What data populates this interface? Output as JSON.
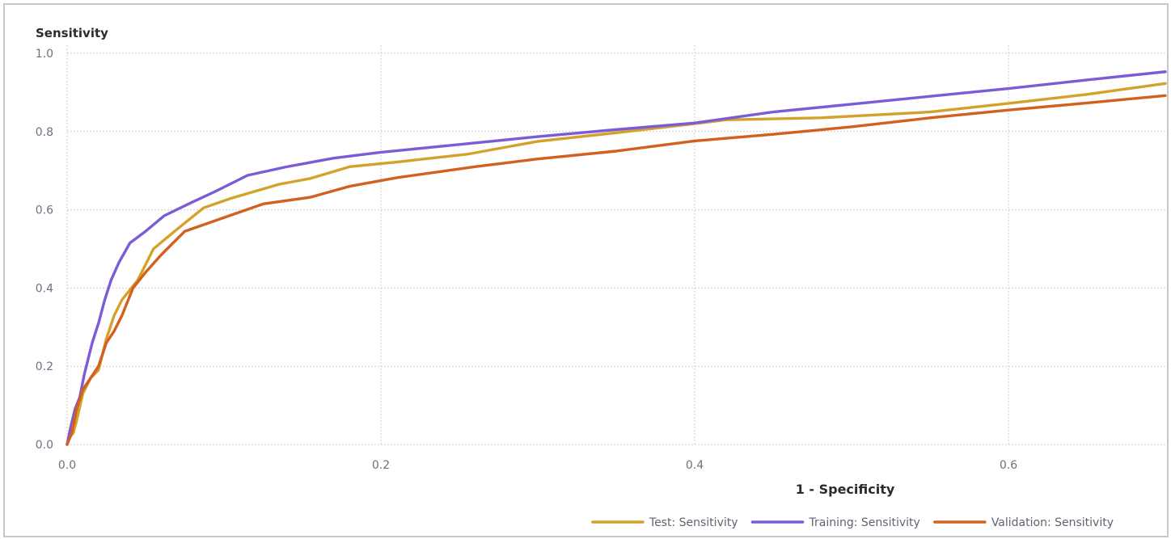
{
  "chart_data": {
    "type": "line",
    "ylabel": "Sensitivity",
    "xlabel": "1 - Specificity",
    "xlim": [
      0,
      0.7
    ],
    "ylim": [
      0,
      1.0
    ],
    "x_ticks": [
      0.0,
      0.2,
      0.4,
      0.6
    ],
    "x_tick_labels": [
      "0.0",
      "0.2",
      "0.4",
      "0.6"
    ],
    "y_ticks": [
      0.0,
      0.2,
      0.4,
      0.6,
      0.8,
      1.0
    ],
    "y_tick_labels": [
      "0.0",
      "0.2",
      "0.4",
      "0.6",
      "0.8",
      "1.0"
    ],
    "grid": true,
    "legend_position": "bottom-right",
    "series": [
      {
        "name": "Test: Sensitivity",
        "color": "#d4a22b",
        "points": [
          [
            0.0,
            0.0
          ],
          [
            0.002,
            0.02
          ],
          [
            0.004,
            0.03
          ],
          [
            0.006,
            0.06
          ],
          [
            0.01,
            0.13
          ],
          [
            0.015,
            0.17
          ],
          [
            0.02,
            0.19
          ],
          [
            0.025,
            0.27
          ],
          [
            0.03,
            0.33
          ],
          [
            0.035,
            0.37
          ],
          [
            0.045,
            0.42
          ],
          [
            0.055,
            0.5
          ],
          [
            0.07,
            0.55
          ],
          [
            0.087,
            0.605
          ],
          [
            0.105,
            0.63
          ],
          [
            0.135,
            0.665
          ],
          [
            0.155,
            0.68
          ],
          [
            0.18,
            0.71
          ],
          [
            0.21,
            0.722
          ],
          [
            0.255,
            0.742
          ],
          [
            0.3,
            0.775
          ],
          [
            0.35,
            0.797
          ],
          [
            0.4,
            0.82
          ],
          [
            0.42,
            0.83
          ],
          [
            0.48,
            0.835
          ],
          [
            0.55,
            0.85
          ],
          [
            0.6,
            0.872
          ],
          [
            0.65,
            0.895
          ],
          [
            0.7,
            0.923
          ]
        ]
      },
      {
        "name": "Training: Sensitivity",
        "color": "#7b5cd6",
        "points": [
          [
            0.0,
            0.0
          ],
          [
            0.002,
            0.04
          ],
          [
            0.005,
            0.09
          ],
          [
            0.008,
            0.12
          ],
          [
            0.011,
            0.18
          ],
          [
            0.016,
            0.26
          ],
          [
            0.02,
            0.31
          ],
          [
            0.024,
            0.37
          ],
          [
            0.028,
            0.42
          ],
          [
            0.033,
            0.465
          ],
          [
            0.04,
            0.515
          ],
          [
            0.05,
            0.545
          ],
          [
            0.062,
            0.585
          ],
          [
            0.08,
            0.62
          ],
          [
            0.095,
            0.648
          ],
          [
            0.115,
            0.688
          ],
          [
            0.14,
            0.71
          ],
          [
            0.17,
            0.732
          ],
          [
            0.2,
            0.747
          ],
          [
            0.25,
            0.767
          ],
          [
            0.3,
            0.787
          ],
          [
            0.35,
            0.805
          ],
          [
            0.4,
            0.822
          ],
          [
            0.45,
            0.85
          ],
          [
            0.5,
            0.87
          ],
          [
            0.55,
            0.89
          ],
          [
            0.6,
            0.91
          ],
          [
            0.65,
            0.932
          ],
          [
            0.7,
            0.953
          ]
        ]
      },
      {
        "name": "Validation: Sensitivity",
        "color": "#d2601f",
        "points": [
          [
            0.0,
            0.0
          ],
          [
            0.003,
            0.03
          ],
          [
            0.006,
            0.09
          ],
          [
            0.01,
            0.14
          ],
          [
            0.015,
            0.17
          ],
          [
            0.02,
            0.2
          ],
          [
            0.025,
            0.26
          ],
          [
            0.03,
            0.29
          ],
          [
            0.035,
            0.33
          ],
          [
            0.042,
            0.4
          ],
          [
            0.05,
            0.44
          ],
          [
            0.06,
            0.485
          ],
          [
            0.075,
            0.545
          ],
          [
            0.1,
            0.58
          ],
          [
            0.125,
            0.615
          ],
          [
            0.155,
            0.632
          ],
          [
            0.18,
            0.66
          ],
          [
            0.21,
            0.682
          ],
          [
            0.26,
            0.71
          ],
          [
            0.3,
            0.73
          ],
          [
            0.35,
            0.75
          ],
          [
            0.4,
            0.776
          ],
          [
            0.45,
            0.793
          ],
          [
            0.5,
            0.812
          ],
          [
            0.55,
            0.835
          ],
          [
            0.6,
            0.855
          ],
          [
            0.65,
            0.873
          ],
          [
            0.7,
            0.892
          ]
        ]
      }
    ]
  }
}
